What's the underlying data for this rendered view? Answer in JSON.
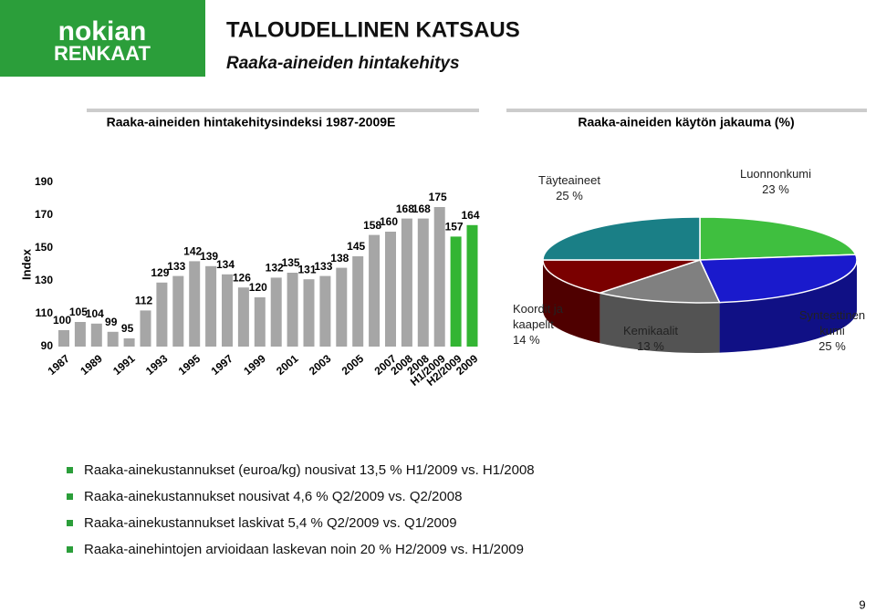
{
  "logo": {
    "line1": "nokian",
    "line2": "RENKAAT"
  },
  "header": {
    "title": "TALOUDELLINEN KATSAUS",
    "subtitle": "Raaka-aineiden hintakehitys"
  },
  "chart_data": [
    {
      "type": "bar",
      "title": "Raaka-aineiden hintakehitysindeksi 1987-2009E",
      "y_label": "Index",
      "categories": [
        "1987",
        null,
        "1989",
        null,
        "1991",
        null,
        "1993",
        null,
        "1995",
        null,
        "1997",
        null,
        "1999",
        null,
        "2001",
        null,
        "2003",
        null,
        "2005",
        null,
        "2007",
        "2008",
        "2008",
        "H1/2009",
        "H2/2009",
        "2009"
      ],
      "values": [
        100,
        105,
        104,
        99,
        95,
        112,
        129,
        133,
        142,
        139,
        134,
        126,
        120,
        132,
        135,
        131,
        133,
        138,
        145,
        158,
        160,
        168,
        168,
        175,
        157,
        164
      ],
      "colors": [
        "#a6a6a6",
        "#a6a6a6",
        "#a6a6a6",
        "#a6a6a6",
        "#a6a6a6",
        "#a6a6a6",
        "#a6a6a6",
        "#a6a6a6",
        "#a6a6a6",
        "#a6a6a6",
        "#a6a6a6",
        "#a6a6a6",
        "#a6a6a6",
        "#a6a6a6",
        "#a6a6a6",
        "#a6a6a6",
        "#a6a6a6",
        "#a6a6a6",
        "#a6a6a6",
        "#a6a6a6",
        "#a6a6a6",
        "#a6a6a6",
        "#a6a6a6",
        "#a6a6a6",
        "#33b533",
        "#33b533"
      ],
      "ylim": [
        90,
        190
      ],
      "yticks": [
        90,
        110,
        130,
        150,
        170,
        190
      ]
    },
    {
      "type": "pie",
      "title": "Raaka-aineiden käytön jakauma (%)",
      "categories": [
        "Luonnonkumi",
        "Synteettinen kumi",
        "Kemikaalit",
        "Koordit ja kaapelit",
        "Täyteaineet"
      ],
      "values": [
        23,
        25,
        13,
        14,
        25
      ],
      "value_labels": [
        "23 %",
        "25 %",
        "13 %",
        "14 %",
        "25 %"
      ],
      "colors": [
        "#3fbf3f",
        "#1a1acc",
        "#808080",
        "#7a0000",
        "#1a7f86"
      ]
    }
  ],
  "bullets": [
    "Raaka-ainekustannukset (euroa/kg) nousivat 13,5 % H1/2009 vs. H1/2008",
    "Raaka-ainekustannukset nousivat 4,6 % Q2/2009 vs. Q2/2008",
    "Raaka-ainekustannukset laskivat 5,4 % Q2/2009  vs. Q1/2009",
    "Raaka-ainehintojen arvioidaan laskevan noin 20 % H2/2009 vs. H1/2009"
  ],
  "page_number": "9"
}
